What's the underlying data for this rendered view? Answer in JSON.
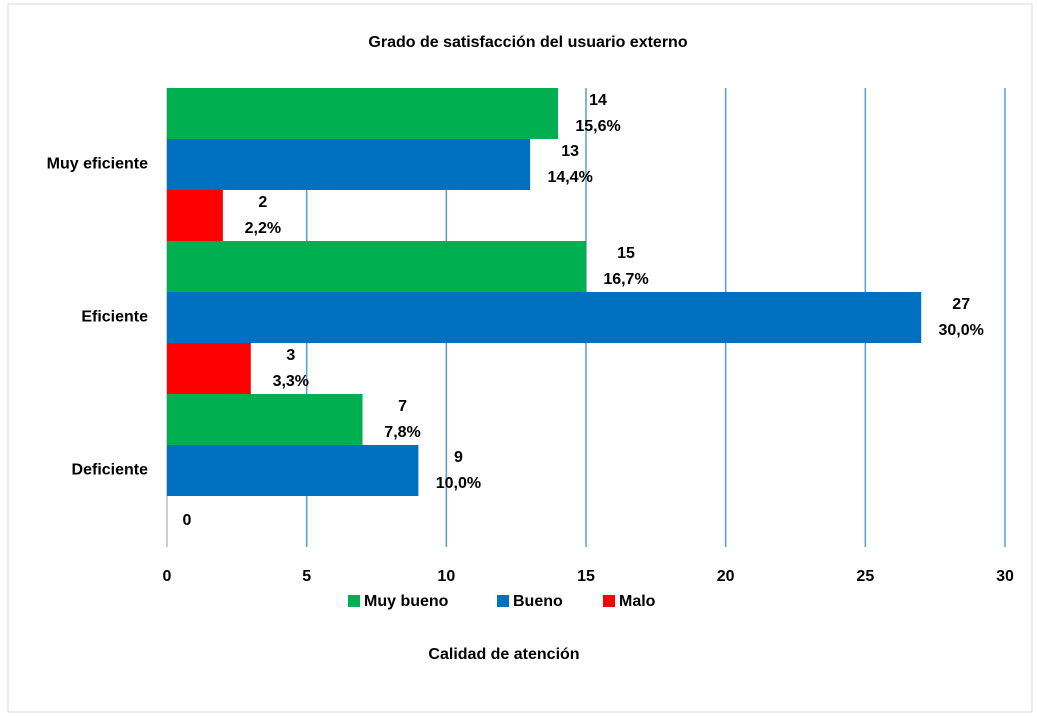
{
  "chart_data": {
    "type": "bar",
    "orientation": "horizontal",
    "title": "Grado de satisfacción del usuario externo",
    "xlabel": "Calidad de atención",
    "categories": [
      "Muy eficiente",
      "Eficiente",
      "Deficiente"
    ],
    "series": [
      {
        "name": "Muy bueno",
        "color": "#00b050",
        "values": [
          14,
          15,
          7
        ],
        "percentages": [
          15.6,
          16.7,
          7.8
        ],
        "percentage_labels": [
          "15,6%",
          "16,7%",
          "7,8%"
        ]
      },
      {
        "name": "Bueno",
        "color": "#0070c0",
        "values": [
          13,
          27,
          9
        ],
        "percentages": [
          14.4,
          30.0,
          10.0
        ],
        "percentage_labels": [
          "14,4%",
          "30,0%",
          "10,0%"
        ]
      },
      {
        "name": "Malo",
        "color": "#ff0000",
        "values": [
          2,
          3,
          0
        ],
        "percentages": [
          2.2,
          3.3,
          null
        ],
        "percentage_labels": [
          "2,2%",
          "3,3%",
          null
        ]
      }
    ],
    "xlim": [
      0,
      30
    ],
    "xticks": [
      0,
      5,
      10,
      15,
      20,
      25,
      30
    ],
    "grid": true,
    "legend": "bottom"
  }
}
